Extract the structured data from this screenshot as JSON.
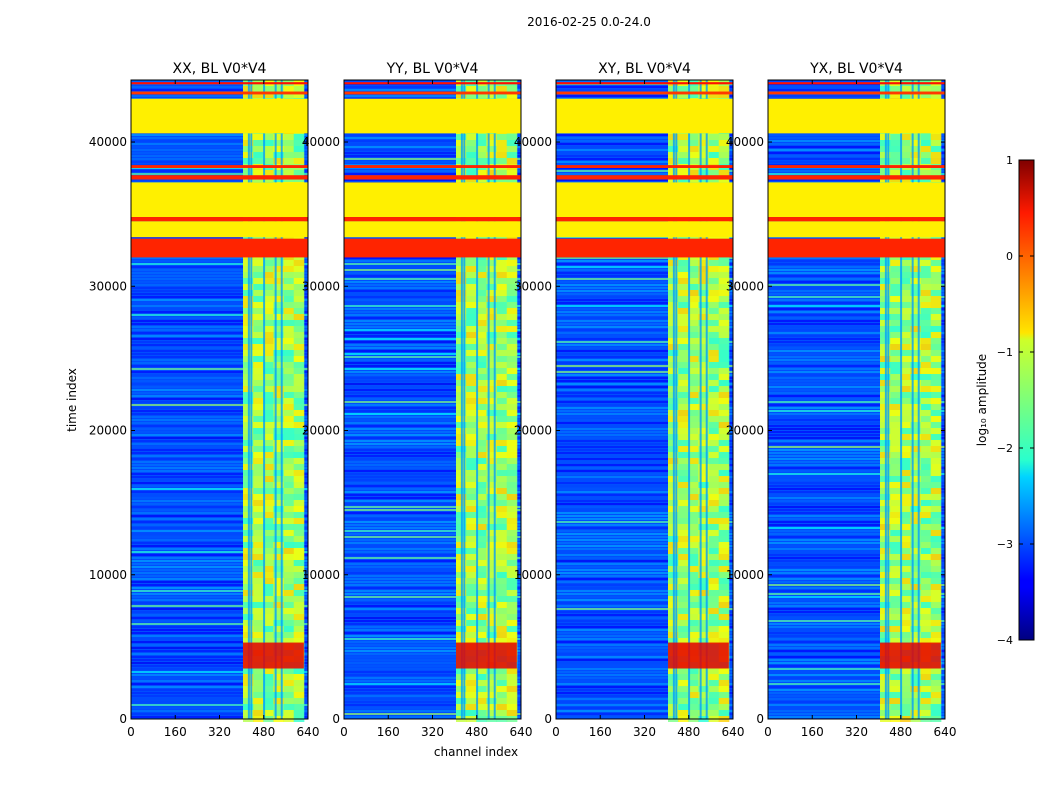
{
  "figure": {
    "suptitle": "2016-02-25 0.0-24.0"
  },
  "chart_data": {
    "type": "heatmap",
    "title": "2016-02-25 0.0-24.0",
    "xlabel": "channel index",
    "ylabel": "time index",
    "xlim": [
      0,
      640
    ],
    "ylim": [
      0,
      44300
    ],
    "x_ticks": [
      0,
      160,
      320,
      480,
      640
    ],
    "y_ticks": [
      0,
      10000,
      20000,
      30000,
      40000
    ],
    "panels": [
      {
        "name": "XX, BL V0*V4",
        "band_shape": "xx"
      },
      {
        "name": "YY, BL V0*V4",
        "band_shape": "yy"
      },
      {
        "name": "XY, BL V0*V4",
        "band_shape": "xy"
      },
      {
        "name": "YX, BL V0*V4",
        "band_shape": "yx"
      }
    ],
    "signal_band": {
      "channel_start": 405,
      "channel_end": 625,
      "typical_log10_amplitude": -1.3
    },
    "background_log10_amplitude": -3.0,
    "flagged_time_ranges": [
      {
        "t0": 44000,
        "t1": 44150,
        "log10_amplitude": 0.3
      },
      {
        "t0": 43300,
        "t1": 43500,
        "log10_amplitude": 0.1
      },
      {
        "t0": 40600,
        "t1": 43000,
        "log10_amplitude": -0.8
      },
      {
        "t0": 38200,
        "t1": 38400,
        "log10_amplitude": 0.2
      },
      {
        "t0": 37400,
        "t1": 37700,
        "log10_amplitude": 0.2
      },
      {
        "t0": 34800,
        "t1": 37200,
        "log10_amplitude": -0.8
      },
      {
        "t0": 34500,
        "t1": 34800,
        "log10_amplitude": 0.2
      },
      {
        "t0": 33400,
        "t1": 34500,
        "log10_amplitude": -0.8
      },
      {
        "t0": 32000,
        "t1": 33300,
        "log10_amplitude": 0.2
      }
    ],
    "bright_time_ranges": [
      {
        "t0": 3500,
        "t1": 5300,
        "log10_amplitude": 0.5
      }
    ],
    "colorbar": {
      "label": "log₁₀ amplitude",
      "vmin": -4,
      "vmax": 1,
      "ticks": [
        1,
        0,
        -1,
        -2,
        -3,
        -4
      ],
      "tick_labels": [
        "1",
        "0",
        "−1",
        "−2",
        "−3",
        "−4"
      ],
      "colormap": "jet"
    }
  }
}
